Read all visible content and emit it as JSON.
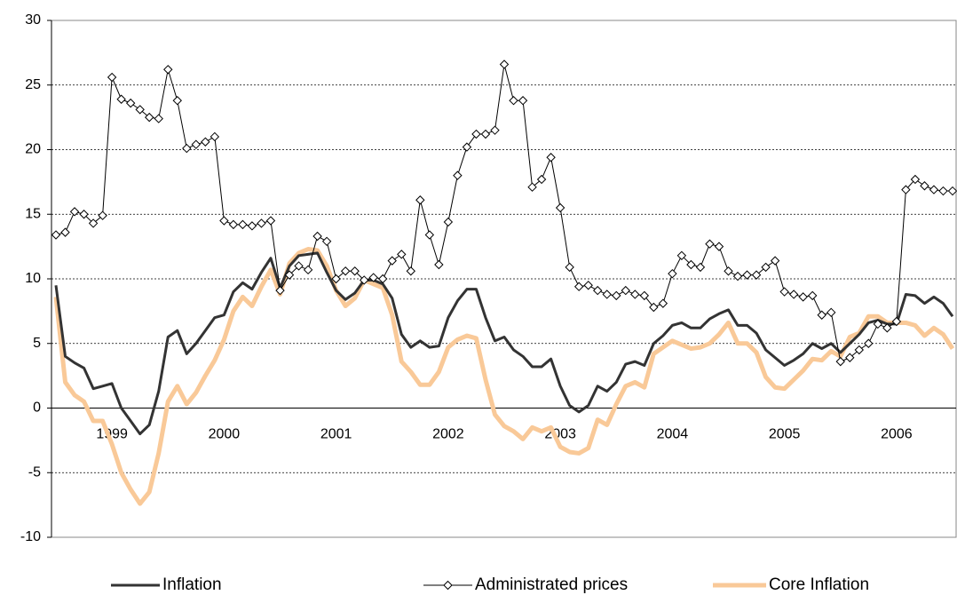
{
  "chart_data": {
    "type": "line",
    "categories": [
      null,
      null,
      null,
      null,
      null,
      null,
      "1999",
      null,
      null,
      null,
      null,
      null,
      null,
      null,
      null,
      null,
      null,
      null,
      "2000",
      null,
      null,
      null,
      null,
      null,
      null,
      null,
      null,
      null,
      null,
      null,
      "2001",
      null,
      null,
      null,
      null,
      null,
      null,
      null,
      null,
      null,
      null,
      null,
      "2002",
      null,
      null,
      null,
      null,
      null,
      null,
      null,
      null,
      null,
      null,
      null,
      "2003",
      null,
      null,
      null,
      null,
      null,
      null,
      null,
      null,
      null,
      null,
      null,
      "2004",
      null,
      null,
      null,
      null,
      null,
      null,
      null,
      null,
      null,
      null,
      null,
      "2005",
      null,
      null,
      null,
      null,
      null,
      null,
      null,
      null,
      null,
      null,
      null,
      "2006",
      null,
      null,
      null,
      null,
      null,
      null
    ],
    "series": [
      {
        "name": "Inflation",
        "color": "#333333",
        "values": [
          9.5,
          4.0,
          3.5,
          3.1,
          1.5,
          1.7,
          1.9,
          0.0,
          -1.0,
          -2.0,
          -1.3,
          1.3,
          5.5,
          6.0,
          4.2,
          5.0,
          6.0,
          7.0,
          7.2,
          9.0,
          9.7,
          9.2,
          10.5,
          11.6,
          9.3,
          11.0,
          11.8,
          11.9,
          12.0,
          10.5,
          9.1,
          8.4,
          8.9,
          9.9,
          9.9,
          9.6,
          8.5,
          5.7,
          4.7,
          5.2,
          4.7,
          4.8,
          7.0,
          8.3,
          9.2,
          9.2,
          7.0,
          5.2,
          5.5,
          4.5,
          4.0,
          3.2,
          3.2,
          3.8,
          1.7,
          0.2,
          -0.3,
          0.2,
          1.7,
          1.3,
          2.0,
          3.4,
          3.6,
          3.3,
          5.0,
          5.6,
          6.4,
          6.6,
          6.2,
          6.2,
          6.9,
          7.3,
          7.6,
          6.4,
          6.4,
          5.8,
          4.5,
          3.9,
          3.3,
          3.7,
          4.2,
          5.0,
          4.6,
          5.0,
          4.3,
          5.0,
          5.7,
          6.6,
          6.8,
          6.5,
          6.5,
          8.8,
          8.7,
          8.1,
          8.6,
          8.1,
          7.1
        ]
      },
      {
        "name": "Administrated prices",
        "color": "#000000",
        "marker": "diamond",
        "values": [
          13.4,
          13.6,
          15.2,
          15.0,
          14.3,
          14.9,
          25.6,
          23.9,
          23.6,
          23.1,
          22.5,
          22.4,
          26.2,
          23.8,
          20.1,
          20.4,
          20.6,
          21.0,
          14.5,
          14.2,
          14.2,
          14.1,
          14.3,
          14.5,
          9.1,
          10.3,
          11.0,
          10.7,
          13.3,
          12.9,
          10.0,
          10.6,
          10.6,
          9.9,
          10.1,
          10.0,
          11.4,
          11.9,
          10.6,
          16.1,
          13.4,
          11.1,
          14.4,
          18.0,
          20.2,
          21.2,
          21.2,
          21.5,
          26.6,
          23.8,
          23.8,
          17.1,
          17.7,
          19.4,
          15.5,
          10.9,
          9.4,
          9.5,
          9.1,
          8.8,
          8.7,
          9.1,
          8.8,
          8.7,
          7.8,
          8.1,
          10.4,
          11.8,
          11.1,
          10.9,
          12.7,
          12.5,
          10.6,
          10.2,
          10.3,
          10.3,
          10.9,
          11.4,
          9.0,
          8.8,
          8.6,
          8.7,
          7.2,
          7.4,
          3.6,
          3.9,
          4.5,
          5.0,
          6.5,
          6.2,
          6.7,
          16.9,
          17.7,
          17.2,
          16.9,
          16.8,
          16.8
        ]
      },
      {
        "name": "Core Inflation",
        "color": "#f9c998",
        "values": [
          8.6,
          2.0,
          1.0,
          0.5,
          -1.0,
          -1.0,
          -2.8,
          -5.0,
          -6.3,
          -7.4,
          -6.5,
          -3.5,
          0.5,
          1.7,
          0.3,
          1.2,
          2.5,
          3.7,
          5.3,
          7.5,
          8.6,
          7.9,
          9.4,
          10.7,
          8.8,
          11.2,
          12.0,
          12.3,
          12.2,
          11.0,
          9.1,
          7.9,
          8.5,
          9.9,
          9.6,
          9.3,
          7.2,
          3.6,
          2.8,
          1.8,
          1.8,
          2.8,
          4.7,
          5.3,
          5.6,
          5.4,
          2.2,
          -0.5,
          -1.4,
          -1.8,
          -2.4,
          -1.5,
          -1.8,
          -1.5,
          -3.0,
          -3.4,
          -3.5,
          -3.1,
          -0.9,
          -1.3,
          0.3,
          1.7,
          2.0,
          1.6,
          4.2,
          4.7,
          5.2,
          4.9,
          4.6,
          4.7,
          5.0,
          5.7,
          6.6,
          5.0,
          5.0,
          4.3,
          2.4,
          1.6,
          1.5,
          2.2,
          2.9,
          3.8,
          3.7,
          4.4,
          4.0,
          5.5,
          5.8,
          7.1,
          7.1,
          6.6,
          6.6,
          6.6,
          6.4,
          5.6,
          6.2,
          5.7,
          4.6
        ]
      }
    ],
    "ylim": [
      -10,
      30
    ],
    "yticks": [
      -10,
      -5,
      0,
      5,
      10,
      15,
      20,
      25,
      30
    ],
    "grid": true,
    "legend": "bottom"
  }
}
